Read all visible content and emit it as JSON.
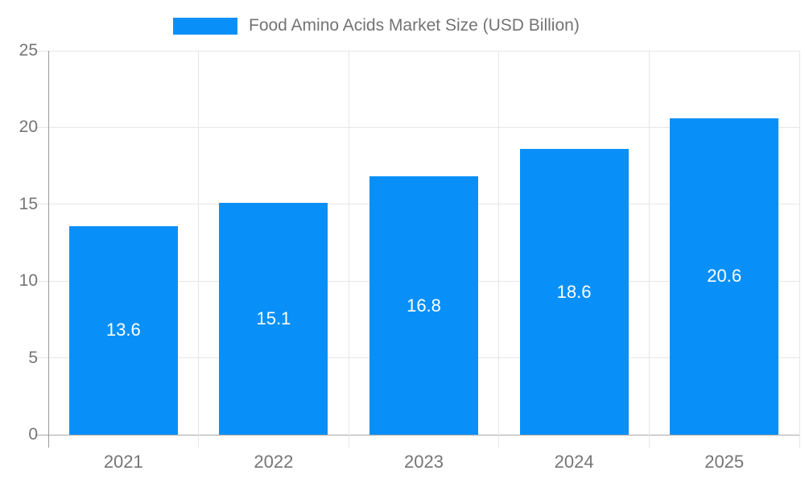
{
  "legend": {
    "label": "Food Amino Acids Market Size (USD Billion)"
  },
  "chart_data": {
    "type": "bar",
    "title": "Food Amino Acids Market Size (USD Billion)",
    "categories": [
      "2021",
      "2022",
      "2023",
      "2024",
      "2025"
    ],
    "values": [
      13.6,
      15.1,
      16.8,
      18.6,
      20.6
    ],
    "value_labels": [
      "13.6",
      "15.1",
      "16.8",
      "18.6",
      "20.6"
    ],
    "series_name": "Food Amino Acids Market Size (USD Billion)",
    "xlabel": "",
    "ylabel": "",
    "ylim": [
      0,
      25
    ],
    "yticks": [
      0,
      5,
      10,
      15,
      20,
      25
    ],
    "ytick_labels": [
      "0",
      "5",
      "10",
      "15",
      "20",
      "25"
    ],
    "grid": true,
    "legend_position": "top-center",
    "value_label_position": "center-of-bar",
    "value_label_color": "#ffffff"
  },
  "colors": {
    "bar": "#0990f8",
    "grid": "#e6e6e6",
    "baseline": "#a9a9a9",
    "axis": "#9b9b9b",
    "tick_text": "#757575",
    "legend_text": "#737373",
    "background": "#ffffff"
  }
}
